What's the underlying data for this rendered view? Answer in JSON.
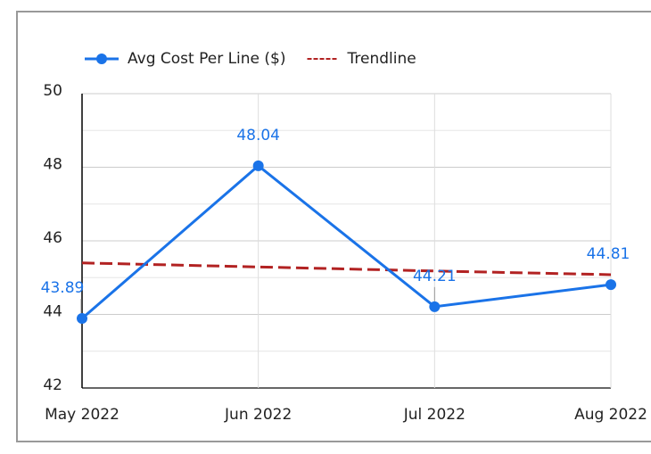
{
  "chart_data": {
    "type": "line",
    "categories": [
      "May 2022",
      "Jun 2022",
      "Jul 2022",
      "Aug 2022"
    ],
    "series": [
      {
        "name": "Avg Cost Per Line ($)",
        "color": "#1a73e8",
        "values": [
          43.89,
          48.04,
          44.21,
          44.81
        ]
      },
      {
        "name": "Trendline",
        "color": "#b22222",
        "dashed": true,
        "values": [
          45.4,
          45.29,
          45.18,
          45.08
        ]
      }
    ],
    "data_labels_series": 0,
    "ylim": [
      42,
      50
    ],
    "yticks": [
      42,
      44,
      46,
      48,
      50
    ],
    "minor_yticks": [
      43,
      45,
      47,
      49
    ],
    "grid": true,
    "legend": "top"
  }
}
